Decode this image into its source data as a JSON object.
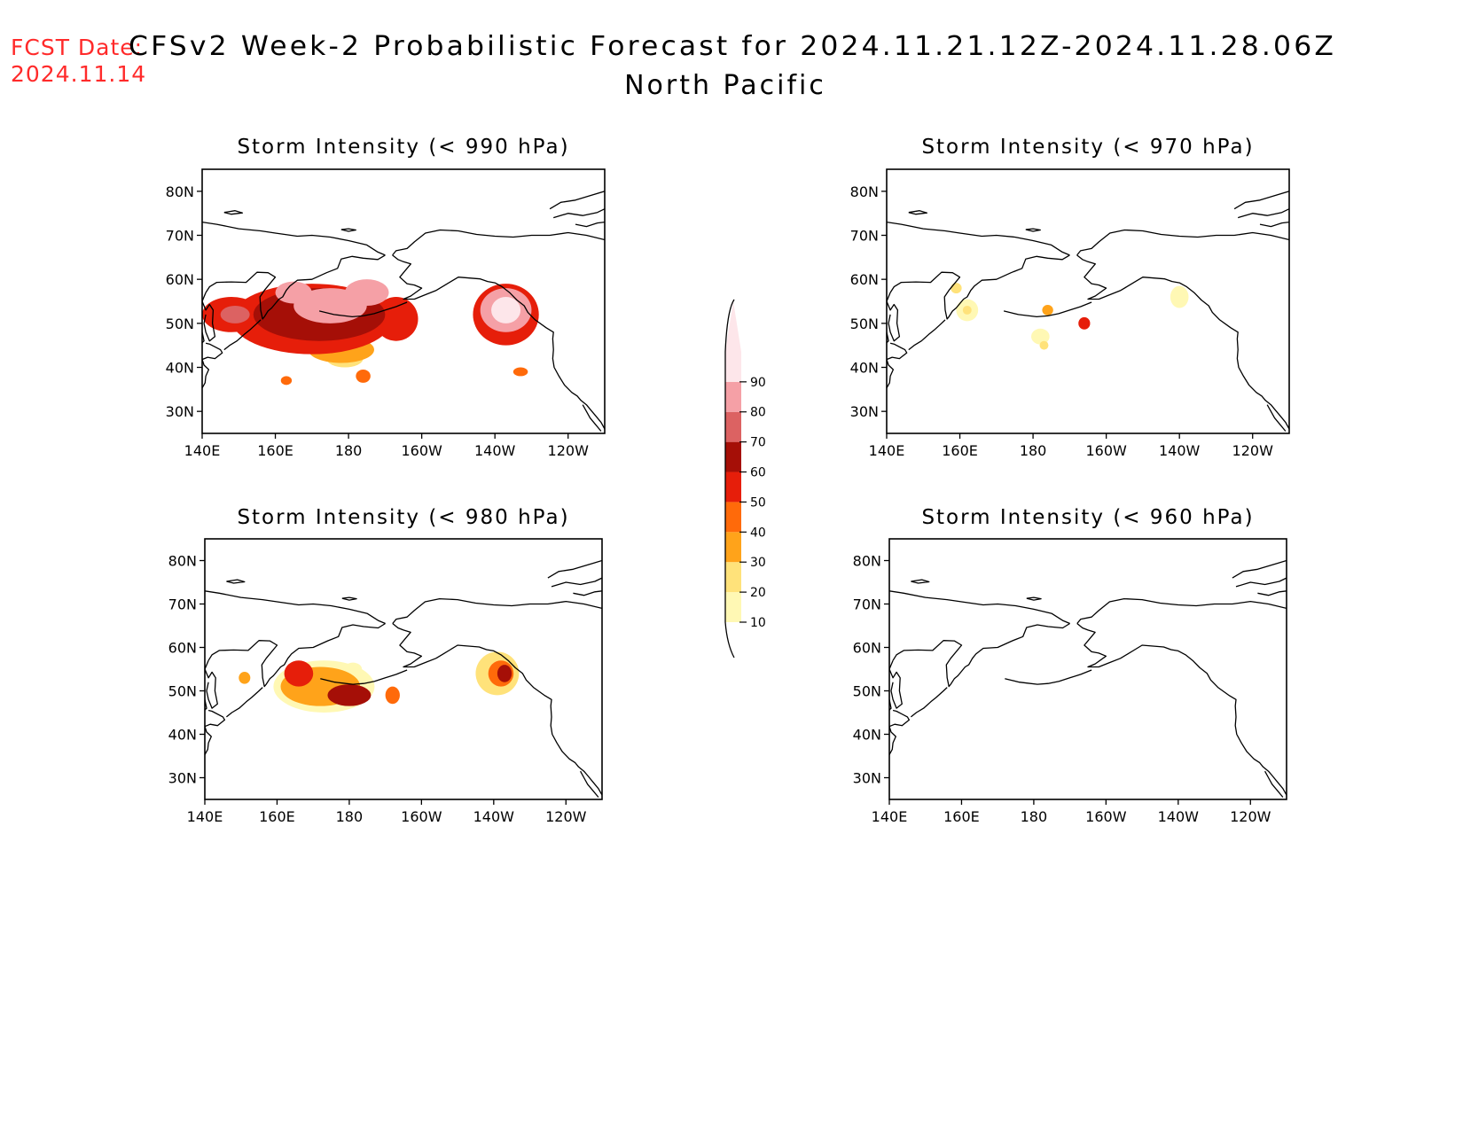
{
  "header": {
    "fcst_label": "FCST Date:",
    "fcst_date": "2024.11.14",
    "title": "CFSv2 Week-2 Probabilistic Forecast for 2024.11.21.12Z-2024.11.28.06Z",
    "subtitle": "North Pacific"
  },
  "axes": {
    "lon_ticks": [
      {
        "lon": 140,
        "label": "140E"
      },
      {
        "lon": 160,
        "label": "160E"
      },
      {
        "lon": 180,
        "label": "180"
      },
      {
        "lon": 200,
        "label": "160W"
      },
      {
        "lon": 220,
        "label": "140W"
      },
      {
        "lon": 240,
        "label": "120W"
      }
    ],
    "lat_ticks": [
      {
        "lat": 30,
        "label": "30N"
      },
      {
        "lat": 40,
        "label": "40N"
      },
      {
        "lat": 50,
        "label": "50N"
      },
      {
        "lat": 60,
        "label": "60N"
      },
      {
        "lat": 70,
        "label": "70N"
      },
      {
        "lat": 80,
        "label": "80N"
      }
    ],
    "lon_range": [
      140,
      250
    ],
    "lat_range": [
      25,
      85
    ]
  },
  "colorbar": {
    "levels": [
      10,
      20,
      30,
      40,
      50,
      60,
      70,
      80,
      90
    ],
    "colors": [
      "#fff8b4",
      "#ffe27a",
      "#ffa31a",
      "#ff6a0a",
      "#e61e0a",
      "#a50f07",
      "#dc6262",
      "#f5a0a6",
      "#fde6ea"
    ]
  },
  "panels": [
    {
      "id": "p990",
      "title": "Storm Intensity (< 990 hPa)",
      "blobs": [
        {
          "lon": 148,
          "lat": 52,
          "rx": 8,
          "ry": 4,
          "level": 5
        },
        {
          "lon": 149,
          "lat": 52,
          "rx": 4,
          "ry": 2,
          "level": 7
        },
        {
          "lon": 170,
          "lat": 51,
          "rx": 22,
          "ry": 8,
          "level": 5
        },
        {
          "lon": 172,
          "lat": 52,
          "rx": 18,
          "ry": 6,
          "level": 6
        },
        {
          "lon": 175,
          "lat": 54,
          "rx": 10,
          "ry": 4,
          "level": 8
        },
        {
          "lon": 185,
          "lat": 57,
          "rx": 6,
          "ry": 3,
          "level": 8
        },
        {
          "lon": 165,
          "lat": 57,
          "rx": 5,
          "ry": 2.5,
          "level": 8
        },
        {
          "lon": 178,
          "lat": 44,
          "rx": 9,
          "ry": 3,
          "level": 3
        },
        {
          "lon": 179,
          "lat": 42,
          "rx": 5,
          "ry": 2,
          "level": 2
        },
        {
          "lon": 193,
          "lat": 51,
          "rx": 6,
          "ry": 5,
          "level": 5
        },
        {
          "lon": 223,
          "lat": 52,
          "rx": 9,
          "ry": 7,
          "level": 5
        },
        {
          "lon": 223,
          "lat": 53,
          "rx": 7,
          "ry": 5,
          "level": 8
        },
        {
          "lon": 223,
          "lat": 53,
          "rx": 4,
          "ry": 3,
          "level": 9
        },
        {
          "lon": 163,
          "lat": 37,
          "rx": 1.5,
          "ry": 1,
          "level": 4
        },
        {
          "lon": 184,
          "lat": 38,
          "rx": 2,
          "ry": 1.5,
          "level": 4
        },
        {
          "lon": 227,
          "lat": 39,
          "rx": 2,
          "ry": 1,
          "level": 4
        }
      ]
    },
    {
      "id": "p970",
      "title": "Storm Intensity (< 970 hPa)",
      "blobs": [
        {
          "lon": 162,
          "lat": 53,
          "rx": 3,
          "ry": 2.5,
          "level": 1
        },
        {
          "lon": 162,
          "lat": 53,
          "rx": 1.2,
          "ry": 1,
          "level": 2
        },
        {
          "lon": 159,
          "lat": 58,
          "rx": 1.5,
          "ry": 1.2,
          "level": 2
        },
        {
          "lon": 184,
          "lat": 53,
          "rx": 1.5,
          "ry": 1.2,
          "level": 3
        },
        {
          "lon": 182,
          "lat": 47,
          "rx": 2.5,
          "ry": 1.8,
          "level": 1
        },
        {
          "lon": 183,
          "lat": 45,
          "rx": 1.2,
          "ry": 1,
          "level": 2
        },
        {
          "lon": 194,
          "lat": 50,
          "rx": 1.6,
          "ry": 1.4,
          "level": 5
        },
        {
          "lon": 220,
          "lat": 56,
          "rx": 2.5,
          "ry": 2.5,
          "level": 1
        }
      ]
    },
    {
      "id": "p980",
      "title": "Storm Intensity (< 980 hPa)",
      "blobs": [
        {
          "lon": 151,
          "lat": 53,
          "rx": 1.6,
          "ry": 1.4,
          "level": 3
        },
        {
          "lon": 173,
          "lat": 51,
          "rx": 14,
          "ry": 6,
          "level": 1
        },
        {
          "lon": 172,
          "lat": 51,
          "rx": 11,
          "ry": 4.5,
          "level": 3
        },
        {
          "lon": 166,
          "lat": 54,
          "rx": 4,
          "ry": 3,
          "level": 5
        },
        {
          "lon": 180,
          "lat": 49,
          "rx": 6,
          "ry": 2.5,
          "level": 6
        },
        {
          "lon": 181,
          "lat": 55,
          "rx": 2.5,
          "ry": 1.5,
          "level": 1
        },
        {
          "lon": 192,
          "lat": 49,
          "rx": 2,
          "ry": 2,
          "level": 4
        },
        {
          "lon": 221,
          "lat": 54,
          "rx": 6,
          "ry": 5,
          "level": 2
        },
        {
          "lon": 222,
          "lat": 54,
          "rx": 3.5,
          "ry": 3,
          "level": 4
        },
        {
          "lon": 223,
          "lat": 54,
          "rx": 2,
          "ry": 2,
          "level": 6
        }
      ]
    },
    {
      "id": "p960",
      "title": "Storm Intensity (< 960 hPa)",
      "blobs": []
    }
  ]
}
